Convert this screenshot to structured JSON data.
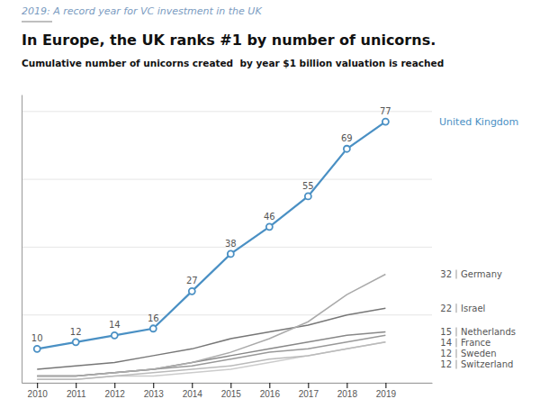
{
  "chart_data": {
    "type": "line",
    "annotations": [
      "2019: A record year for VC investment in the UK"
    ],
    "title": "In Europe, the UK ranks #1 by number of unicorns.",
    "subtitle": "Cumulative number of unicorns created  by year $1 billion valuation is reached",
    "x": [
      2010,
      2011,
      2012,
      2013,
      2014,
      2015,
      2016,
      2017,
      2018,
      2019
    ],
    "series": [
      {
        "name": "United Kingdom",
        "color": "#4a90c4",
        "marker": "circle",
        "data_labels": true,
        "values": [
          10,
          12,
          14,
          16,
          27,
          38,
          46,
          55,
          69,
          77
        ]
      },
      {
        "name": "Germany",
        "color": "#aaaaaa",
        "values": [
          2,
          2,
          3,
          4,
          6,
          9,
          13,
          18,
          26,
          32
        ]
      },
      {
        "name": "Israel",
        "color": "#777777",
        "values": [
          4,
          5,
          6,
          8,
          10,
          13,
          15,
          17,
          20,
          22
        ]
      },
      {
        "name": "Netherlands",
        "color": "#888888",
        "values": [
          2,
          2,
          3,
          4,
          6,
          8,
          10,
          12,
          14,
          15
        ]
      },
      {
        "name": "France",
        "color": "#999999",
        "values": [
          2,
          2,
          3,
          4,
          5,
          7,
          9,
          10,
          12,
          14
        ]
      },
      {
        "name": "Sweden",
        "color": "#bbbbbb",
        "values": [
          1,
          1,
          2,
          3,
          4,
          5,
          7,
          8,
          10,
          12
        ]
      },
      {
        "name": "Switzerland",
        "color": "#cccccc",
        "values": [
          1,
          1,
          2,
          2,
          3,
          4,
          6,
          8,
          10,
          12
        ]
      }
    ],
    "xlim": [
      2009.6,
      2020.2
    ],
    "xticks": [
      2010,
      2011,
      2012,
      2013,
      2014,
      2015,
      2016,
      2017,
      2018,
      2019
    ],
    "ylim": [
      0,
      85
    ],
    "yticks": [
      0,
      20,
      40,
      60,
      80
    ],
    "grid": true,
    "tick_labels": "x"
  }
}
